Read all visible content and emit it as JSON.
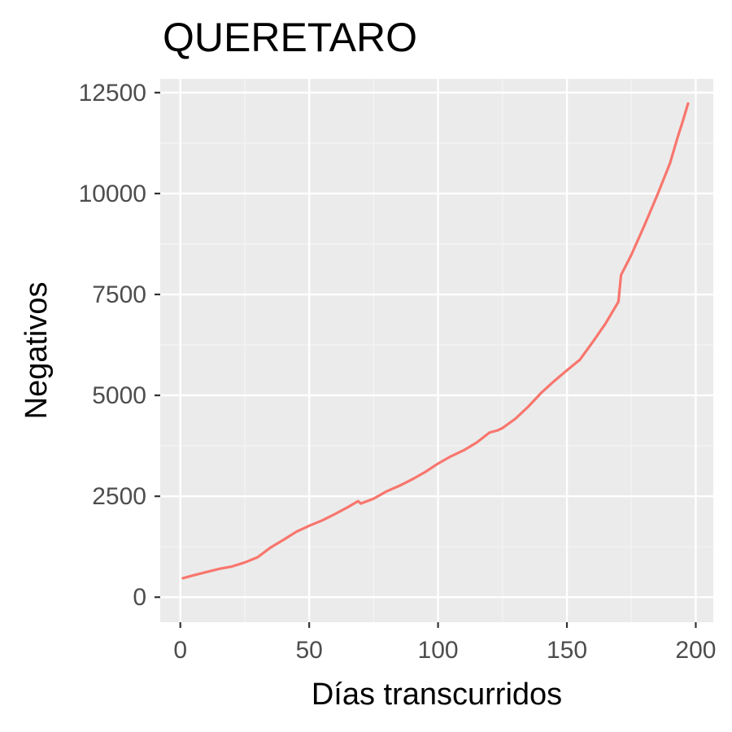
{
  "chart_data": {
    "type": "line",
    "title": "QUERETARO",
    "xlabel": "Días transcurridos",
    "ylabel": "Negativos",
    "xlim": [
      -7.8,
      206.8
    ],
    "ylim": [
      -620,
      12840
    ],
    "x_ticks": [
      0,
      50,
      100,
      150,
      200
    ],
    "x_tick_labels": [
      "0",
      "50",
      "100",
      "150",
      "200"
    ],
    "y_ticks": [
      0,
      2500,
      5000,
      7500,
      10000,
      12500
    ],
    "y_tick_labels": [
      "0",
      "2500",
      "5000",
      "7500",
      "10000",
      "12500"
    ],
    "grid": true,
    "legend": "none",
    "colors": {
      "panel_background": "#ebebeb",
      "grid_major": "#ffffff",
      "grid_minor": "#f5f5f5",
      "line": "#f8766d",
      "tick_mark": "#333333"
    },
    "series": [
      {
        "x": [
          1,
          5,
          10,
          15,
          20,
          25,
          30,
          35,
          40,
          45,
          50,
          55,
          60,
          65,
          69,
          70,
          75,
          80,
          85,
          90,
          95,
          100,
          105,
          110,
          115,
          120,
          123,
          125,
          130,
          135,
          140,
          145,
          150,
          155,
          160,
          165,
          170,
          171,
          175,
          180,
          185,
          190,
          193,
          195,
          197
        ],
        "y": [
          470,
          540,
          620,
          700,
          760,
          860,
          990,
          1230,
          1420,
          1620,
          1770,
          1900,
          2060,
          2230,
          2380,
          2320,
          2440,
          2620,
          2760,
          2920,
          3100,
          3310,
          3490,
          3640,
          3830,
          4080,
          4130,
          4190,
          4420,
          4720,
          5060,
          5350,
          5620,
          5880,
          6320,
          6780,
          7320,
          7980,
          8480,
          9200,
          9950,
          10750,
          11400,
          11800,
          12230
        ]
      }
    ]
  }
}
